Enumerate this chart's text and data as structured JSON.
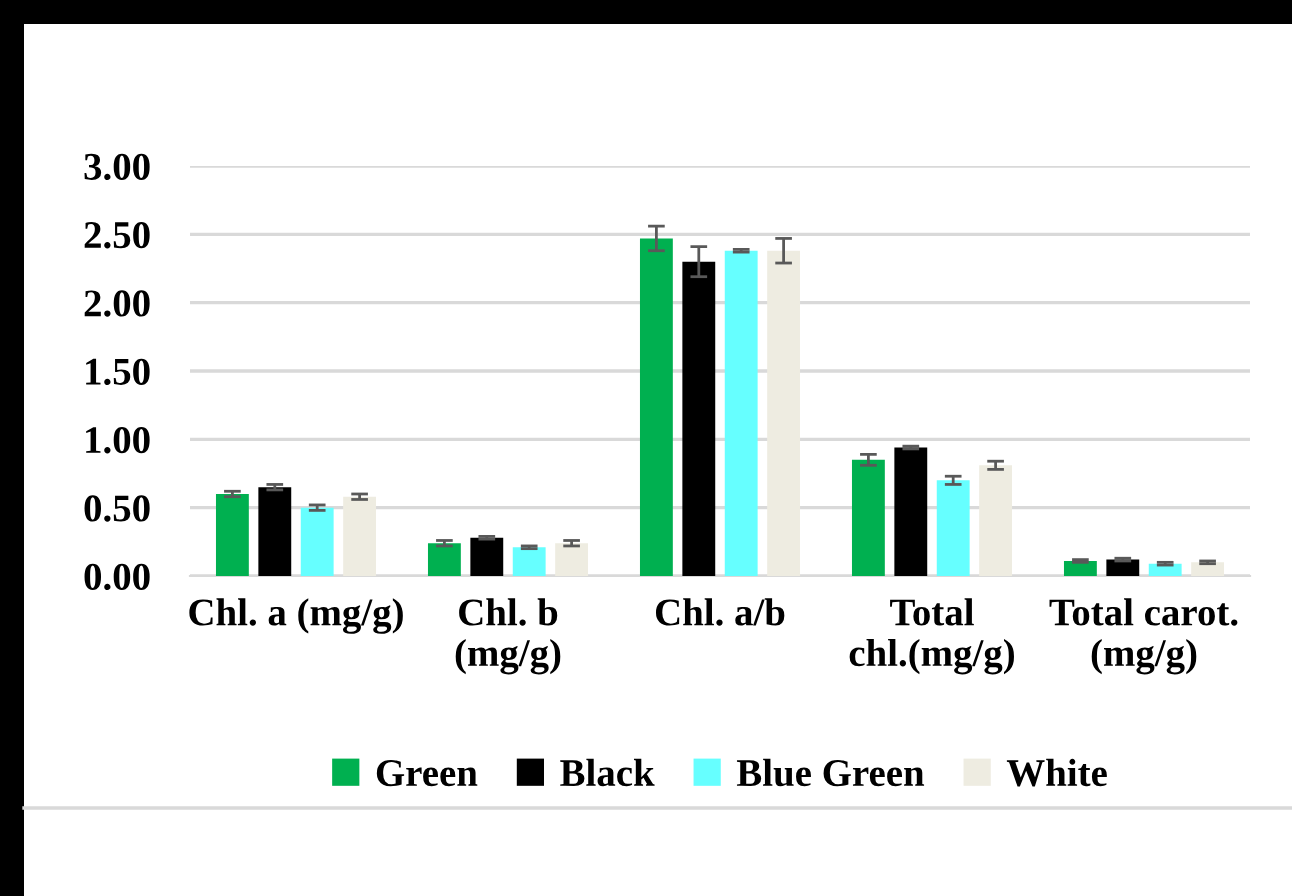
{
  "chart_data": {
    "type": "bar",
    "categories": [
      "Chl. a (mg/g)",
      "Chl. b\n(mg/g)",
      "Chl. a/b",
      "Total\nchl.(mg/g)",
      "Total carot.\n(mg/g)"
    ],
    "series": [
      {
        "name": "Green",
        "color": "#00b050",
        "values": [
          0.6,
          0.24,
          2.47,
          0.85,
          0.11
        ],
        "errors": [
          0.02,
          0.02,
          0.09,
          0.04,
          0.01
        ]
      },
      {
        "name": "Black",
        "color": "#000000",
        "values": [
          0.65,
          0.28,
          2.3,
          0.94,
          0.12
        ],
        "errors": [
          0.02,
          0.01,
          0.11,
          0.01,
          0.01
        ]
      },
      {
        "name": "Blue Green",
        "color": "#66ffff",
        "values": [
          0.5,
          0.21,
          2.38,
          0.7,
          0.09
        ],
        "errors": [
          0.02,
          0.01,
          0.01,
          0.03,
          0.01
        ]
      },
      {
        "name": "White",
        "color": "#eeece1",
        "values": [
          0.58,
          0.24,
          2.38,
          0.81,
          0.1
        ],
        "errors": [
          0.02,
          0.02,
          0.09,
          0.03,
          0.01
        ]
      }
    ],
    "ylim": [
      0,
      3
    ],
    "yticks": [
      {
        "value": 0,
        "label": "0.00"
      },
      {
        "value": 0.5,
        "label": "0.50"
      },
      {
        "value": 1,
        "label": "1.00"
      },
      {
        "value": 1.5,
        "label": "1.50"
      },
      {
        "value": 2,
        "label": "2.00"
      },
      {
        "value": 2.5,
        "label": "2.50"
      },
      {
        "value": 3,
        "label": "3.00"
      }
    ],
    "grid": "y",
    "legend": "bottom"
  }
}
